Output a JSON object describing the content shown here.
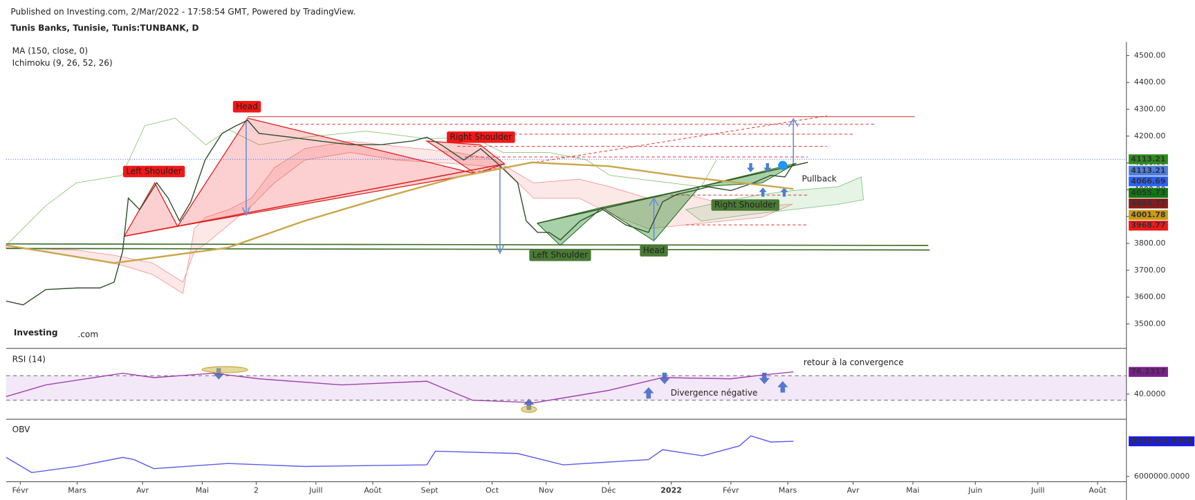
{
  "header": {
    "published": "Published on Investing.com, 2/Mar/2022 - 17:58:54 GMT, Powered by TradingView.",
    "symbol": "Tunis Banks, Tunisie, Tunis:TUNBANK, D",
    "logo": "Investing",
    "logo_suffix": ".com"
  },
  "chart_data": [
    {
      "type": "line",
      "legend_extra": "Ichimoku (9, 26, 52, 26)",
      "xlim": [
        0,
        392
      ],
      "xticks": [
        {
          "value": 5,
          "label": "Févr"
        },
        {
          "value": 25,
          "label": "Mars"
        },
        {
          "value": 48,
          "label": "Avr"
        },
        {
          "value": 69,
          "label": "Mai"
        },
        {
          "value": 88,
          "label": "2"
        },
        {
          "value": 109,
          "label": "Juill"
        },
        {
          "value": 129,
          "label": "Août"
        },
        {
          "value": 149,
          "label": "Sept"
        },
        {
          "value": 171,
          "label": "Oct"
        },
        {
          "value": 190,
          "label": "Nov"
        },
        {
          "value": 212,
          "label": "Déc"
        },
        {
          "value": 234,
          "label": "2022"
        },
        {
          "value": 255,
          "label": "Févr"
        },
        {
          "value": 275,
          "label": "Mars"
        },
        {
          "value": 298,
          "label": "Avr"
        },
        {
          "value": 319,
          "label": "Mai"
        },
        {
          "value": 341,
          "label": "Juin"
        },
        {
          "value": 363,
          "label": "Juill"
        },
        {
          "value": 384,
          "label": "Août"
        }
      ],
      "ylim": [
        3409,
        4551
      ],
      "yticks": [
        {
          "value": 3500,
          "label": "3500.00"
        },
        {
          "value": 3600,
          "label": "3600.00"
        },
        {
          "value": 3700,
          "label": "3700.00"
        },
        {
          "value": 3800,
          "label": "3800.00"
        },
        {
          "value": 3900,
          "label": "3900.00"
        },
        {
          "value": 4000,
          "label": "4000.00"
        },
        {
          "value": 4100,
          "label": "4100.00"
        },
        {
          "value": 4200,
          "label": "4200.00"
        },
        {
          "value": 4300,
          "label": "4300.00"
        },
        {
          "value": 4400,
          "label": "4400.00"
        },
        {
          "value": 4500,
          "label": "4500.00"
        }
      ],
      "series": [
        {
          "color": "#2f4f2f",
          "x": [
            0,
            6,
            14,
            25,
            33,
            38,
            41,
            43,
            47,
            53,
            57,
            61,
            65,
            70,
            76,
            81,
            85,
            89,
            100,
            110,
            121,
            132,
            143,
            148,
            153,
            161,
            167,
            173,
            180,
            183,
            187,
            191,
            195,
            202,
            210,
            218,
            226,
            231,
            236,
            242,
            247,
            255,
            263,
            269,
            274,
            277
          ],
          "values": [
            3585,
            3571,
            3628,
            3634,
            3634,
            3656,
            3770,
            3969,
            3926,
            4026,
            3969,
            3884,
            3955,
            4111,
            4210,
            4239,
            4259,
            4210,
            4196,
            4182,
            4168,
            4168,
            4182,
            4196,
            4168,
            4111,
            4153,
            4097,
            4026,
            3884,
            3841,
            3841,
            3813,
            3884,
            3926,
            3869,
            3841,
            3955,
            3983,
            3997,
            4011,
            3997,
            4026,
            4054,
            4048,
            4097
          ]
        },
        {
          "name": "MA (150, close, 0)",
          "color": "#c9a64a",
          "x": [
            0,
            38,
            78,
            105,
            132,
            159,
            185,
            212,
            239,
            266,
            277
          ],
          "values": [
            3793,
            3727,
            3784,
            3884,
            3969,
            4048,
            4102,
            4088,
            4048,
            4017,
            4003
          ]
        }
      ],
      "tags": [
        {
          "value": 4113.21,
          "label": "4113.21",
          "color": "#2e8b1f"
        },
        {
          "value": 4113.21,
          "label": "4113.21",
          "color": "#4f7ee0"
        },
        {
          "value": 4066.69,
          "label": "4066.69",
          "color": "#2962ff"
        },
        {
          "value": 4055.73,
          "label": "4055.73",
          "color": "#0d7a0d"
        },
        {
          "value": 4044.77,
          "label": "4044.77",
          "color": "#8b1a1a"
        },
        {
          "value": 4001.78,
          "label": "4001.78",
          "color": "#c99a10"
        },
        {
          "value": 3968.77,
          "label": "3968.77",
          "color": "#f01818"
        }
      ],
      "annotations": [
        {
          "text": "Head",
          "color": "#f01818"
        },
        {
          "text": "Left Shoulder",
          "color": "#f01818"
        },
        {
          "text": "Right Shoulder",
          "color": "#f01818"
        },
        {
          "text": "Left Shoulder",
          "color": "#4a7a35"
        },
        {
          "text": "Head",
          "color": "#4a7a35"
        },
        {
          "text": "Right Shoulder",
          "color": "#4a7a35"
        },
        {
          "text": "Pullback"
        }
      ]
    },
    {
      "type": "line",
      "title": "RSI (14)",
      "xlim": [
        0,
        392
      ],
      "ylim": [
        -1,
        111
      ],
      "band": [
        30,
        70
      ],
      "yticks": [
        {
          "value": 40,
          "label": "40.0000"
        }
      ],
      "series": [
        {
          "color": "#a040b0",
          "x": [
            0,
            14,
            41,
            52,
            73,
            89,
            118,
            148,
            164,
            186,
            212,
            231,
            255,
            266,
            277
          ],
          "values": [
            36,
            55,
            74,
            67,
            74,
            65,
            55,
            61,
            30,
            26,
            46,
            67,
            65,
            71,
            76.2317
          ]
        }
      ],
      "tags": [
        {
          "value": 76.2317,
          "label": "76.2317",
          "color": "#7b1f8a"
        }
      ],
      "annotations": [
        {
          "text": "retour à la convergence"
        },
        {
          "text": "Divergence négative"
        }
      ]
    },
    {
      "type": "line",
      "title": "OBV",
      "xlim": [
        0,
        392
      ],
      "ylim": [
        5694000,
        9190000
      ],
      "yticks": [
        {
          "value": 6000000,
          "label": "6000000.0000"
        }
      ],
      "series": [
        {
          "color": "#5b5bea",
          "x": [
            0,
            9,
            25,
            41,
            45,
            52,
            78,
            105,
            148,
            151,
            180,
            196,
            226,
            231,
            245,
            258,
            262,
            269,
            277
          ],
          "values": [
            7090000,
            6220000,
            6570000,
            7090000,
            6960000,
            6440000,
            6740000,
            6570000,
            6660000,
            7440000,
            7310000,
            6660000,
            6960000,
            7530000,
            7180000,
            7750000,
            8320000,
            7970000,
            8010444
          ]
        }
      ],
      "tags": [
        {
          "value": 8010444,
          "label": "8010444.0000",
          "color": "#1a1ae6"
        }
      ]
    }
  ]
}
